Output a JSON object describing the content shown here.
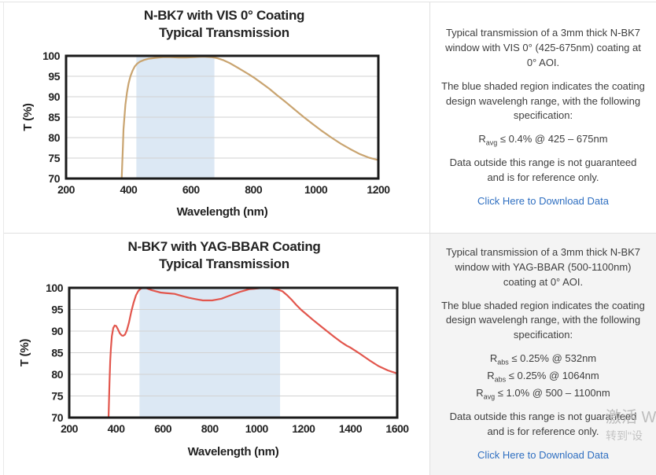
{
  "rows": [
    {
      "title_line1": "N-BK7 with VIS 0° Coating",
      "title_line2": "Typical Transmission",
      "panel": {
        "para1": "Typical transmission of a 3mm thick N-BK7 window with VIS 0° (425-675nm) coating at 0° AOI.",
        "para2": "The blue shaded region indicates the coating design wavelengh range, with the following specification:",
        "specs": [
          {
            "pre": "R",
            "sub": "avg",
            "rest": " ≤ 0.4% @ 425 – 675nm"
          }
        ],
        "para3": "Data outside this range is not guaranteed and is for reference only.",
        "link": "Click Here to Download Data"
      }
    },
    {
      "title_line1": "N-BK7 with YAG-BBAR Coating",
      "title_line2": "Typical Transmission",
      "panel": {
        "para1": "Typical transmission of a 3mm thick N-BK7 window with YAG-BBAR (500-1100nm) coating at 0° AOI.",
        "para2": "The blue shaded region indicates the coating design wavelengh range, with the following specification:",
        "specs": [
          {
            "pre": "R",
            "sub": "abs",
            "rest": " ≤ 0.25% @ 532nm"
          },
          {
            "pre": "R",
            "sub": "abs",
            "rest": " ≤ 0.25% @ 1064nm"
          },
          {
            "pre": "R",
            "sub": "avg",
            "rest": " ≤ 1.0% @ 500 – 1100nm"
          }
        ],
        "para3": "Data outside this range is not guaranteed and is for reference only.",
        "link": "Click Here to Download Data"
      }
    }
  ],
  "watermark": {
    "line1": "激活 W",
    "line2": "转到\"设"
  },
  "colors": {
    "vis_curve": "#c9a470",
    "yag_curve": "#e2564d",
    "band": "#dce8f4",
    "grid": "#d2d2d2",
    "plot_border": "#1a1a1a",
    "link": "#2f6fc1",
    "text": "#3e3e3e",
    "row2_bg": "#f4f4f4"
  },
  "chart_data": [
    {
      "type": "line",
      "title": "N-BK7 with VIS 0° Coating",
      "subtitle": "Typical Transmission",
      "xlabel": "Wavelength (nm)",
      "ylabel": "T (%)",
      "xlim": [
        200,
        1200
      ],
      "ylim": [
        70,
        100
      ],
      "xticks": [
        200,
        400,
        600,
        800,
        1000,
        1200
      ],
      "yticks": [
        70,
        75,
        80,
        85,
        90,
        95,
        100
      ],
      "grid": true,
      "legend": "none",
      "shaded_band": {
        "x0": 425,
        "x1": 675,
        "color": "#dce8f4"
      },
      "series": [
        {
          "name": "Typical Transmission",
          "color": "#c9a470",
          "points": [
            [
              378,
              70
            ],
            [
              380,
              74
            ],
            [
              382,
              78
            ],
            [
              384,
              82
            ],
            [
              387,
              85
            ],
            [
              390,
              88
            ],
            [
              395,
              91
            ],
            [
              400,
              93.2
            ],
            [
              406,
              95.0
            ],
            [
              413,
              96.4
            ],
            [
              420,
              97.4
            ],
            [
              428,
              98.1
            ],
            [
              437,
              98.6
            ],
            [
              450,
              99.0
            ],
            [
              465,
              99.3
            ],
            [
              485,
              99.5
            ],
            [
              510,
              99.7
            ],
            [
              535,
              99.7
            ],
            [
              560,
              99.6
            ],
            [
              585,
              99.6
            ],
            [
              610,
              99.7
            ],
            [
              640,
              99.8
            ],
            [
              665,
              99.7
            ],
            [
              685,
              99.4
            ],
            [
              705,
              98.9
            ],
            [
              725,
              98.2
            ],
            [
              745,
              97.3
            ],
            [
              765,
              96.4
            ],
            [
              785,
              95.5
            ],
            [
              805,
              94.5
            ],
            [
              825,
              93.4
            ],
            [
              850,
              92.0
            ],
            [
              875,
              90.4
            ],
            [
              900,
              88.9
            ],
            [
              930,
              87.0
            ],
            [
              960,
              85.1
            ],
            [
              990,
              83.3
            ],
            [
              1020,
              81.6
            ],
            [
              1050,
              80.0
            ],
            [
              1080,
              78.5
            ],
            [
              1110,
              77.2
            ],
            [
              1140,
              76.0
            ],
            [
              1170,
              75.1
            ],
            [
              1200,
              74.5
            ]
          ]
        }
      ]
    },
    {
      "type": "line",
      "title": "N-BK7 with YAG-BBAR Coating",
      "subtitle": "Typical Transmission",
      "xlabel": "Wavelength (nm)",
      "ylabel": "T (%)",
      "xlim": [
        200,
        1600
      ],
      "ylim": [
        70,
        100
      ],
      "xticks": [
        200,
        400,
        600,
        800,
        1000,
        1200,
        1400,
        1600
      ],
      "yticks": [
        70,
        75,
        80,
        85,
        90,
        95,
        100
      ],
      "grid": true,
      "legend": "none",
      "shaded_band": {
        "x0": 500,
        "x1": 1100,
        "color": "#dce8f4"
      },
      "series": [
        {
          "name": "Typical Transmission",
          "color": "#e2564d",
          "points": [
            [
              368,
              70
            ],
            [
              370,
              74
            ],
            [
              372,
              78
            ],
            [
              375,
              83
            ],
            [
              378,
              86
            ],
            [
              382,
              88.8
            ],
            [
              388,
              90.7
            ],
            [
              394,
              91.3
            ],
            [
              400,
              91.2
            ],
            [
              408,
              90.4
            ],
            [
              416,
              89.5
            ],
            [
              424,
              89.0
            ],
            [
              430,
              88.9
            ],
            [
              438,
              89.2
            ],
            [
              446,
              90.2
            ],
            [
              455,
              92.0
            ],
            [
              465,
              94.5
            ],
            [
              475,
              96.6
            ],
            [
              485,
              98.3
            ],
            [
              495,
              99.3
            ],
            [
              505,
              99.8
            ],
            [
              515,
              100
            ],
            [
              530,
              99.9
            ],
            [
              550,
              99.5
            ],
            [
              570,
              99.2
            ],
            [
              590,
              98.9
            ],
            [
              610,
              98.8
            ],
            [
              630,
              98.7
            ],
            [
              650,
              98.6
            ],
            [
              670,
              98.3
            ],
            [
              690,
              98.0
            ],
            [
              710,
              97.7
            ],
            [
              730,
              97.5
            ],
            [
              750,
              97.3
            ],
            [
              770,
              97.1
            ],
            [
              790,
              97.1
            ],
            [
              810,
              97.1
            ],
            [
              830,
              97.3
            ],
            [
              850,
              97.5
            ],
            [
              870,
              97.9
            ],
            [
              890,
              98.3
            ],
            [
              910,
              98.7
            ],
            [
              930,
              99.1
            ],
            [
              950,
              99.4
            ],
            [
              970,
              99.7
            ],
            [
              990,
              99.8
            ],
            [
              1010,
              99.9
            ],
            [
              1030,
              100
            ],
            [
              1050,
              100
            ],
            [
              1070,
              99.8
            ],
            [
              1090,
              99.6
            ],
            [
              1110,
              99.2
            ],
            [
              1130,
              98.3
            ],
            [
              1150,
              97.2
            ],
            [
              1170,
              96.0
            ],
            [
              1190,
              94.9
            ],
            [
              1210,
              94.0
            ],
            [
              1240,
              92.6
            ],
            [
              1270,
              91.3
            ],
            [
              1300,
              90.0
            ],
            [
              1330,
              88.7
            ],
            [
              1360,
              87.5
            ],
            [
              1385,
              86.6
            ],
            [
              1400,
              86.2
            ],
            [
              1440,
              84.8
            ],
            [
              1480,
              83.3
            ],
            [
              1520,
              81.9
            ],
            [
              1560,
              80.9
            ],
            [
              1600,
              80.2
            ]
          ]
        }
      ]
    }
  ]
}
